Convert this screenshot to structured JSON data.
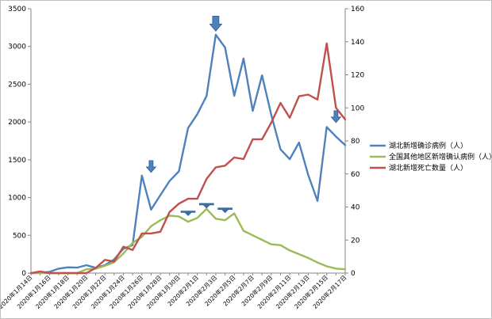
{
  "chart_data": {
    "type": "line",
    "title": "",
    "xlabel": "",
    "ylabel": "",
    "y_left": {
      "range": [
        0,
        3500
      ],
      "ticks": [
        0,
        500,
        1000,
        1500,
        2000,
        2500,
        3000,
        3500
      ]
    },
    "y_right": {
      "range": [
        0,
        160
      ],
      "ticks": [
        0,
        20,
        40,
        60,
        80,
        100,
        120,
        140,
        160
      ]
    },
    "grid": false,
    "legend_position": "right",
    "x": [
      "2020年1月14日",
      "2020年1月15日",
      "2020年1月16日",
      "2020年1月17日",
      "2020年1月18日",
      "2020年1月19日",
      "2020年1月20日",
      "2020年1月21日",
      "2020年1月22日",
      "2020年1月23日",
      "2020年1月24日",
      "2020年1月25日",
      "2020年1月26日",
      "2020年1月27日",
      "2020年1月28日",
      "2020年1月29日",
      "2020年1月30日",
      "2020年1月31日",
      "2020年2月1日",
      "2020年2月2日",
      "2020年2月3日",
      "2020年2月4日",
      "2020年2月5日",
      "2020年2月6日",
      "2020年2月7日",
      "2020年2月8日",
      "2020年2月9日",
      "2020年2月10日",
      "2020年2月11日",
      "2020年2月12日",
      "2020年2月13日",
      "2020年2月14日",
      "2020年2月15日",
      "2020年2月16日",
      "2020年2月17日"
    ],
    "x_tick_labels": [
      "2020年1月14日",
      "2020年1月16日",
      "2020年1月18日",
      "2020年1月20日",
      "2020年1月22日",
      "2020年1月24日",
      "2020年1月26日",
      "2020年1月28日",
      "2020年1月30日",
      "2020年2月1日",
      "2020年2月3日",
      "2020年2月5日",
      "2020年2月7日",
      "2020年2月9日",
      "2020年2月11日",
      "2020年2月13日",
      "2020年2月15日",
      "2020年2月17日"
    ],
    "series": [
      {
        "name": "湖北新增确诊病例（人）",
        "axis": "left",
        "color": "#4f81bd",
        "values": [
          0,
          4,
          17,
          59,
          77,
          72,
          105,
          70,
          105,
          180,
          323,
          371,
          1291,
          840,
          1032,
          1220,
          1347,
          1921,
          2103,
          2345,
          3156,
          2987,
          2347,
          2841,
          2147,
          2618,
          2097,
          1638,
          1508,
          1728,
          1299,
          955,
          1933,
          1807,
          1693
        ]
      },
      {
        "name": "全国其他地区新增确认病例（人）",
        "axis": "left",
        "color": "#9bbb59",
        "values": [
          0,
          0,
          0,
          0,
          0,
          0,
          50,
          60,
          95,
          144,
          260,
          400,
          480,
          620,
          700,
          760,
          750,
          680,
          730,
          850,
          720,
          700,
          790,
          560,
          500,
          440,
          380,
          370,
          300,
          250,
          200,
          140,
          90,
          60,
          50
        ]
      },
      {
        "name": "湖北新增死亡数量（人）",
        "axis": "right",
        "color": "#c0504d",
        "values": [
          0,
          1,
          0,
          0,
          0,
          0,
          0,
          3,
          8,
          7,
          16,
          14,
          24,
          24,
          25,
          37,
          42,
          45,
          45,
          57,
          64,
          65,
          70,
          69,
          81,
          81,
          91,
          103,
          94,
          107,
          108,
          105,
          139,
          100,
          93
        ]
      }
    ],
    "annotations": [
      {
        "type": "arrow-down",
        "x": "2020年1月27日",
        "y_left": 1290
      },
      {
        "type": "arrow-down",
        "x": "2020年2月3日",
        "y_left": 3160
      },
      {
        "type": "arrow-down",
        "x": "2020年2月16日",
        "y_left": 1950
      },
      {
        "type": "arrow-down-small",
        "x": "2020年1月31日",
        "y_left": 760
      },
      {
        "type": "arrow-down-small",
        "x": "2020年2月2日",
        "y_left": 860
      },
      {
        "type": "arrow-down-small",
        "x": "2020年2月4日",
        "y_left": 800
      }
    ]
  }
}
